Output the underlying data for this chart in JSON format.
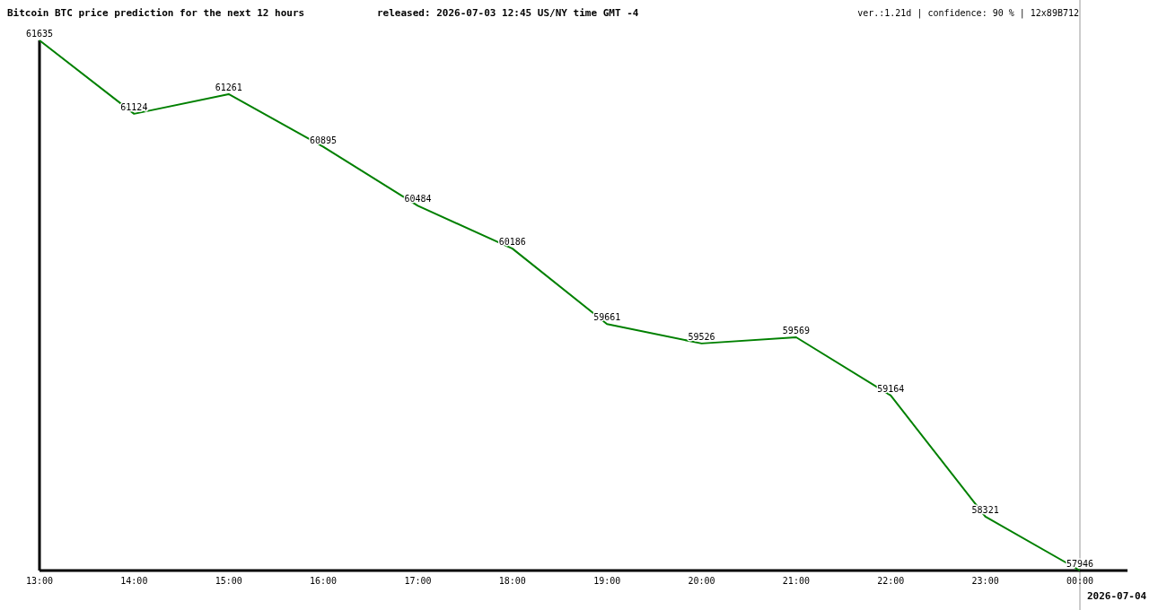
{
  "chart_data": {
    "type": "line",
    "title": "Bitcoin BTC price prediction for the next 12 hours",
    "subtitle": "released: 2026-07-03 12:45 US/NY time GMT -4",
    "annotations": [
      "ver.:1.21d | confidence: 90 % | 12x89B712"
    ],
    "categories": [
      "13:00",
      "14:00",
      "15:00",
      "16:00",
      "17:00",
      "18:00",
      "19:00",
      "20:00",
      "21:00",
      "22:00",
      "23:00",
      "00:00"
    ],
    "series": [
      {
        "color": "#008000",
        "values": [
          61635,
          61124,
          61261,
          60895,
          60484,
          60186,
          59661,
          59526,
          59569,
          59164,
          58321,
          57946
        ]
      }
    ],
    "relative": false,
    "data_labels": true,
    "marker": "none",
    "line_style": "solid",
    "ref_lines": [
      {
        "axis": "x",
        "value": "00:00",
        "label": "2026-07-04",
        "color": "#999999"
      }
    ]
  }
}
